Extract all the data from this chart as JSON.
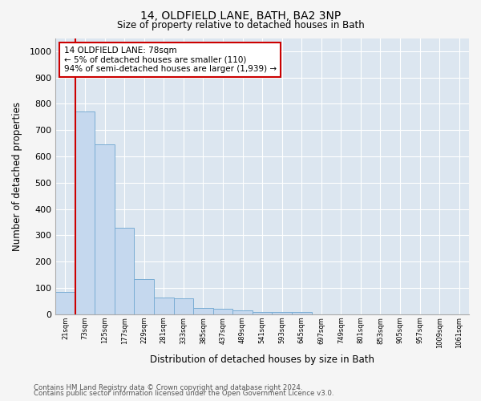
{
  "title": "14, OLDFIELD LANE, BATH, BA2 3NP",
  "subtitle": "Size of property relative to detached houses in Bath",
  "xlabel": "Distribution of detached houses by size in Bath",
  "ylabel": "Number of detached properties",
  "bar_color": "#c5d8ee",
  "bar_edge_color": "#7aadd4",
  "background_color": "#dce6f0",
  "grid_color": "#ffffff",
  "fig_background": "#f5f5f5",
  "bins": [
    "21sqm",
    "73sqm",
    "125sqm",
    "177sqm",
    "229sqm",
    "281sqm",
    "333sqm",
    "385sqm",
    "437sqm",
    "489sqm",
    "541sqm",
    "593sqm",
    "645sqm",
    "697sqm",
    "749sqm",
    "801sqm",
    "853sqm",
    "905sqm",
    "957sqm",
    "1009sqm",
    "1061sqm"
  ],
  "values": [
    85,
    770,
    645,
    330,
    135,
    65,
    60,
    25,
    20,
    15,
    10,
    10,
    10,
    0,
    0,
    0,
    0,
    0,
    0,
    0,
    0
  ],
  "ylim": [
    0,
    1050
  ],
  "yticks": [
    0,
    100,
    200,
    300,
    400,
    500,
    600,
    700,
    800,
    900,
    1000
  ],
  "property_line_color": "#cc0000",
  "annotation_text": "14 OLDFIELD LANE: 78sqm\n← 5% of detached houses are smaller (110)\n94% of semi-detached houses are larger (1,939) →",
  "annotation_box_color": "#ffffff",
  "annotation_edge_color": "#cc0000",
  "footer_line1": "Contains HM Land Registry data © Crown copyright and database right 2024.",
  "footer_line2": "Contains public sector information licensed under the Open Government Licence v3.0."
}
